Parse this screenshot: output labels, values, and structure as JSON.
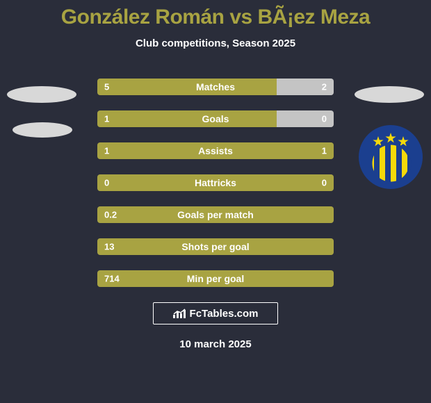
{
  "title": "González Román vs BÃ¡ez Meza",
  "subtitle": "Club competitions, Season 2025",
  "date": "10 march 2025",
  "fctables_label": "FcTables.com",
  "colors": {
    "background": "#2a2d3a",
    "bar_left": "#a8a342",
    "bar_right": "#c4c4c4",
    "bar_bg": "#3a3d4a",
    "title": "#a8a342",
    "text": "#ffffff"
  },
  "crest": {
    "bg_blue": "#1b3f8f",
    "star_color": "#f5d90a",
    "stripe_color": "#f5d90a"
  },
  "stats": [
    {
      "label": "Matches",
      "left_val": "5",
      "right_val": "2",
      "left_pct": 76,
      "right_pct": 24
    },
    {
      "label": "Goals",
      "left_val": "1",
      "right_val": "0",
      "left_pct": 76,
      "right_pct": 24
    },
    {
      "label": "Assists",
      "left_val": "1",
      "right_val": "1",
      "left_pct": 100,
      "right_pct": 0
    },
    {
      "label": "Hattricks",
      "left_val": "0",
      "right_val": "0",
      "left_pct": 100,
      "right_pct": 0
    },
    {
      "label": "Goals per match",
      "left_val": "0.2",
      "right_val": "",
      "left_pct": 100,
      "right_pct": 0
    },
    {
      "label": "Shots per goal",
      "left_val": "13",
      "right_val": "",
      "left_pct": 100,
      "right_pct": 0
    },
    {
      "label": "Min per goal",
      "left_val": "714",
      "right_val": "",
      "left_pct": 100,
      "right_pct": 0
    }
  ]
}
